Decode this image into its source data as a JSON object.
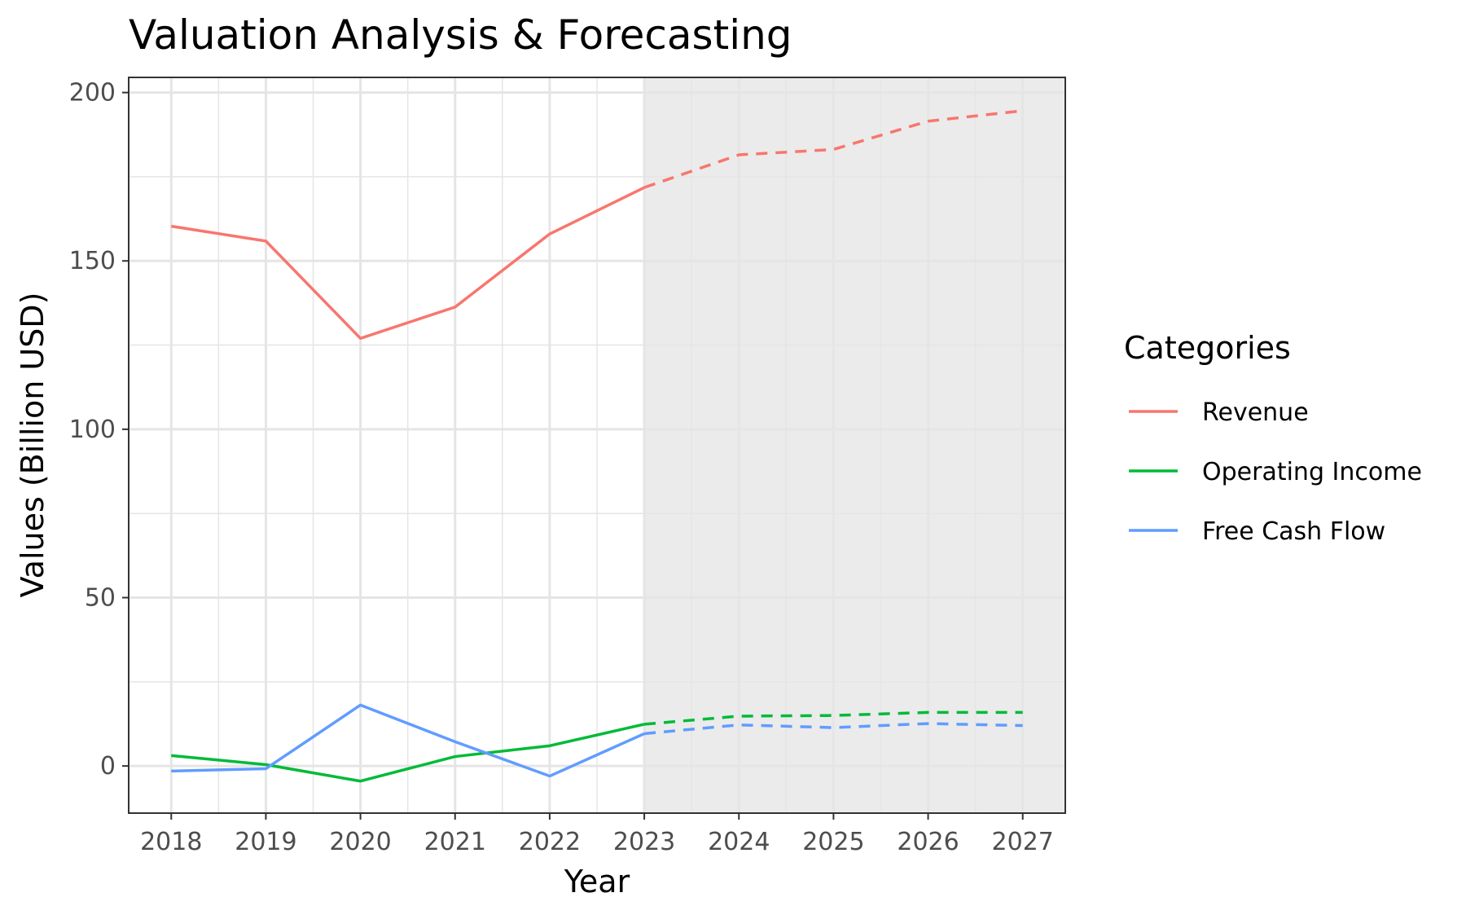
{
  "chart_data": {
    "type": "line",
    "title": "Valuation Analysis & Forecasting",
    "xlabel": "Year",
    "ylabel": "Values (Billion USD)",
    "x": [
      2018,
      2019,
      2020,
      2021,
      2022,
      2023,
      2024,
      2025,
      2026,
      2027
    ],
    "xlim": [
      2017.55,
      2027.45
    ],
    "ylim": [
      -14,
      204.5
    ],
    "y_ticks": [
      0,
      50,
      100,
      150,
      200
    ],
    "forecast_start": 2023,
    "forecast_band_color": "#ebebeb",
    "grid": true,
    "legend": {
      "title": "Categories",
      "position": "right"
    },
    "series": [
      {
        "name": "Revenue",
        "color": "#f8766d",
        "values": [
          160.3,
          155.9,
          127.0,
          136.3,
          158.0,
          171.8,
          181.5,
          183.1,
          191.5,
          194.6
        ]
      },
      {
        "name": "Operating Income",
        "color": "#00ba38",
        "values": [
          3.1,
          0.4,
          -4.5,
          2.8,
          6.0,
          12.4,
          14.8,
          15.0,
          15.9,
          15.9
        ]
      },
      {
        "name": "Free Cash Flow",
        "color": "#619cff",
        "values": [
          -1.5,
          -0.8,
          18.1,
          7.2,
          -3.0,
          9.6,
          12.2,
          11.4,
          12.6,
          12.0
        ]
      }
    ]
  }
}
